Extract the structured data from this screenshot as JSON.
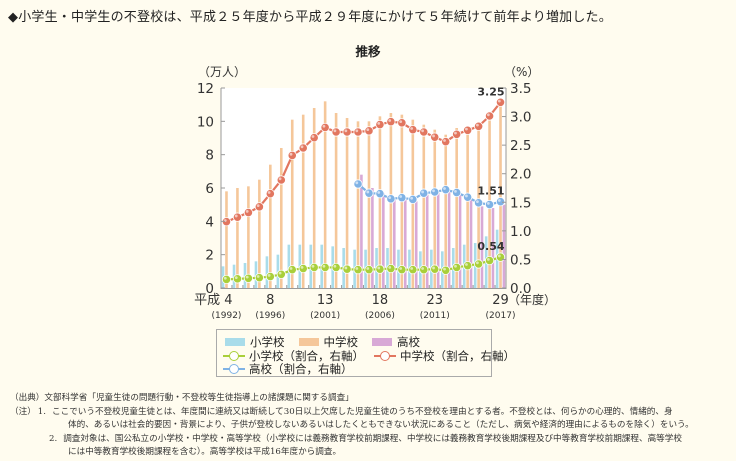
{
  "headline": "◆小学生・中学生の不登校は、平成２５年度から平成２９年度にかけて５年続けて前年より増加した。",
  "chart_data": {
    "type": "bar",
    "title": "推移",
    "left_axis_label": "（万人）",
    "right_axis_label": "（%）",
    "x_unit_label": "（年度）",
    "left_ylim": [
      0,
      12
    ],
    "left_ticks": [
      "0",
      "2",
      "4",
      "6",
      "8",
      "10",
      "12"
    ],
    "right_ylim": [
      0,
      3.5
    ],
    "right_ticks": [
      "0.0",
      "0.5",
      "1.0",
      "1.5",
      "2.0",
      "2.5",
      "3.0",
      "3.5"
    ],
    "x_years": [
      4,
      5,
      6,
      7,
      8,
      9,
      10,
      11,
      12,
      13,
      14,
      15,
      16,
      17,
      18,
      19,
      20,
      21,
      22,
      23,
      24,
      25,
      26,
      27,
      28,
      29
    ],
    "x_tick_labels": [
      {
        "year": 4,
        "label": "平成 4",
        "sub": "(1992)"
      },
      {
        "year": 8,
        "label": "8",
        "sub": "(1996)"
      },
      {
        "year": 13,
        "label": "13",
        "sub": "(2001)"
      },
      {
        "year": 18,
        "label": "18",
        "sub": "(2006)"
      },
      {
        "year": 23,
        "label": "23",
        "sub": "(2011)"
      },
      {
        "year": 29,
        "label": "29",
        "sub": "(2017)"
      }
    ],
    "bar_series": [
      {
        "name": "小学校",
        "color": "#a9dcea",
        "values": [
          1.3,
          1.4,
          1.5,
          1.6,
          1.9,
          2.0,
          2.6,
          2.6,
          2.6,
          2.6,
          2.5,
          2.4,
          2.3,
          2.3,
          2.4,
          2.4,
          2.3,
          2.3,
          2.2,
          2.3,
          2.2,
          2.4,
          2.6,
          2.7,
          3.1,
          3.5
        ]
      },
      {
        "name": "中学校",
        "color": "#f5c79a",
        "values": [
          5.8,
          6.0,
          6.1,
          6.5,
          7.4,
          8.4,
          10.1,
          10.4,
          10.8,
          11.2,
          10.5,
          10.2,
          10.0,
          10.0,
          10.3,
          10.5,
          10.4,
          10.1,
          9.8,
          9.5,
          9.2,
          9.6,
          9.7,
          9.9,
          10.3,
          10.9
        ]
      },
      {
        "name": "高校",
        "color": "#d8a9d6",
        "values": [
          null,
          null,
          null,
          null,
          null,
          null,
          null,
          null,
          null,
          null,
          null,
          null,
          6.8,
          6.0,
          5.7,
          5.3,
          5.3,
          5.2,
          5.6,
          5.7,
          5.8,
          5.6,
          5.3,
          4.9,
          4.8,
          5.0
        ]
      }
    ],
    "line_series": [
      {
        "name": "小学校（割合，右軸）",
        "color": "#a9cf3a",
        "values": [
          0.15,
          0.16,
          0.17,
          0.18,
          0.2,
          0.24,
          0.32,
          0.34,
          0.36,
          0.36,
          0.36,
          0.33,
          0.32,
          0.32,
          0.33,
          0.34,
          0.32,
          0.32,
          0.32,
          0.33,
          0.31,
          0.36,
          0.39,
          0.42,
          0.48,
          0.54
        ]
      },
      {
        "name": "中学校（割合，右軸）",
        "color": "#e2765f",
        "values": [
          1.16,
          1.24,
          1.32,
          1.42,
          1.65,
          1.89,
          2.32,
          2.45,
          2.63,
          2.81,
          2.73,
          2.73,
          2.73,
          2.75,
          2.86,
          2.91,
          2.89,
          2.77,
          2.73,
          2.64,
          2.56,
          2.69,
          2.76,
          2.83,
          3.01,
          3.25
        ]
      },
      {
        "name": "高校（割合，右軸）",
        "color": "#7fb2e5",
        "values": [
          null,
          null,
          null,
          null,
          null,
          null,
          null,
          null,
          null,
          null,
          null,
          null,
          1.82,
          1.66,
          1.65,
          1.56,
          1.58,
          1.55,
          1.66,
          1.68,
          1.72,
          1.67,
          1.59,
          1.49,
          1.46,
          1.51
        ]
      }
    ],
    "annotations": [
      {
        "series": "中学校（割合，右軸）",
        "year": 29,
        "text": "3.25"
      },
      {
        "series": "高校（割合，右軸）",
        "year": 29,
        "text": "1.51"
      },
      {
        "series": "小学校（割合，右軸）",
        "year": 29,
        "text": "0.54"
      }
    ],
    "legend": [
      "小学校",
      "中学校",
      "高校",
      "小学校（割合，右軸）",
      "中学校（割合，右軸）",
      "高校（割合，右軸）"
    ],
    "legend_position": "bottom"
  },
  "notes": {
    "source": "（出典）文部科学省「児童生徒の問題行動・不登校等生徒指導上の諸課題に関する調査」",
    "note_label": "（注）",
    "note1_num": "1.",
    "note1_line1": "ここでいう不登校児童生徒とは、年度間に連続又は断続して30日以上欠席した児童生徒のうち不登校を理由とする者。不登校とは、何らかの心理的、情緒的、身",
    "note1_line2": "体的、あるいは社会的要因・背景により、子供が登校しないあるいはしたくともできない状況にあること（ただし、病気や経済的理由によるものを除く）をいう。",
    "note2_num": "2.",
    "note2_line1": "調査対象は、国公私立の小学校・中学校・高等学校（小学校には義務教育学校前期課程、中学校には義務教育学校後期課程及び中等教育学校前期課程、高等学校",
    "note2_line2": "には中等教育学校後期課程を含む）。高等学校は平成16年度から調査。"
  }
}
